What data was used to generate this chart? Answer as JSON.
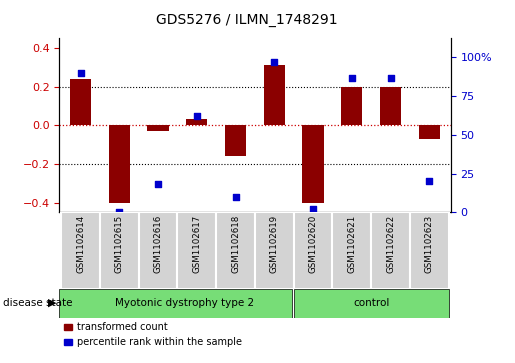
{
  "title": "GDS5276 / ILMN_1748291",
  "samples": [
    "GSM1102614",
    "GSM1102615",
    "GSM1102616",
    "GSM1102617",
    "GSM1102618",
    "GSM1102619",
    "GSM1102620",
    "GSM1102621",
    "GSM1102622",
    "GSM1102623"
  ],
  "transformed_count": [
    0.24,
    -0.4,
    -0.03,
    0.03,
    -0.16,
    0.31,
    -0.4,
    0.2,
    0.2,
    -0.07
  ],
  "percentile_rank": [
    90,
    0,
    18,
    62,
    10,
    97,
    2,
    87,
    87,
    20
  ],
  "bar_color": "#8B0000",
  "dot_color": "#0000CC",
  "group1_count": 6,
  "group1_label": "Myotonic dystrophy type 2",
  "group2_label": "control",
  "group_color": "#77DD77",
  "disease_label": "disease state",
  "ylim_left": [
    -0.45,
    0.45
  ],
  "ylim_right": [
    0,
    112.5
  ],
  "yticks_left": [
    -0.4,
    -0.2,
    0.0,
    0.2,
    0.4
  ],
  "yticks_right": [
    0,
    25,
    50,
    75,
    100
  ],
  "yticklabels_right": [
    "0",
    "25",
    "50",
    "75",
    "100%"
  ],
  "legend_labels": [
    "transformed count",
    "percentile rank within the sample"
  ],
  "grid_color": "#000000",
  "zero_line_color": "#CC0000",
  "tick_label_color_left": "#CC0000",
  "tick_label_color_right": "#0000CC",
  "cell_color": "#D3D3D3",
  "cell_edge_color": "#FFFFFF"
}
